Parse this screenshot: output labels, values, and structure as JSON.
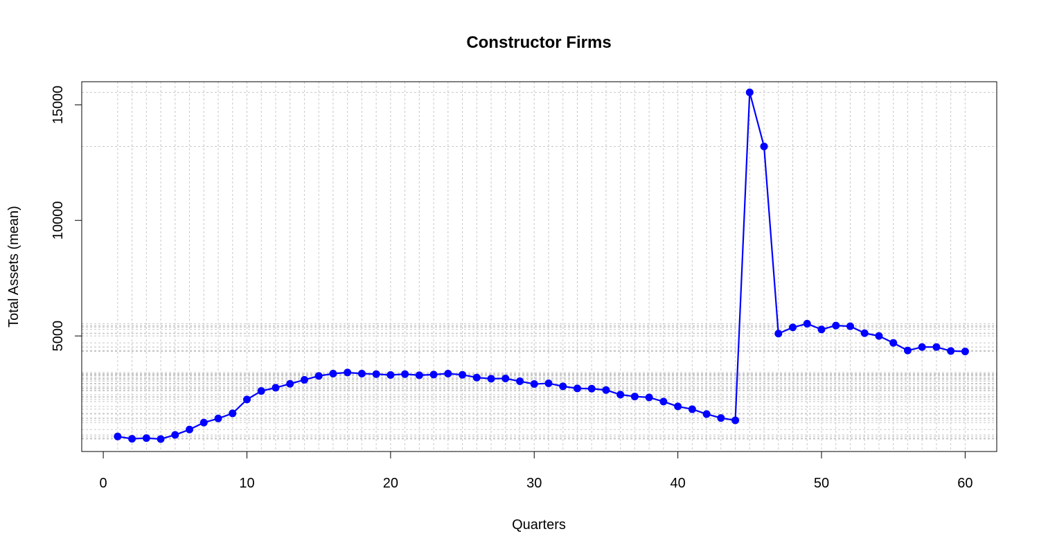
{
  "chart_data": {
    "type": "line",
    "title": "Constructor Firms",
    "xlabel": "Quarters",
    "ylabel": "Total Assets (mean)",
    "xlim": [
      -1.5,
      62.2
    ],
    "ylim": [
      0,
      16000
    ],
    "xticks": [
      0,
      10,
      20,
      30,
      40,
      50,
      60
    ],
    "yticks": [
      5000,
      10000,
      15000
    ],
    "grid": true,
    "color": "#0000ff",
    "series": [
      {
        "x": [
          1,
          2,
          3,
          4,
          5,
          6,
          7,
          8,
          9,
          10,
          11,
          12,
          13,
          14,
          15,
          16,
          17,
          18,
          19,
          20,
          21,
          22,
          23,
          24,
          25,
          26,
          27,
          28,
          29,
          30,
          31,
          32,
          33,
          34,
          35,
          36,
          37,
          38,
          39,
          40,
          41,
          42,
          43,
          44,
          45,
          46,
          47,
          48,
          49,
          50,
          51,
          52,
          53,
          54,
          55,
          56,
          57,
          58,
          59,
          60
        ],
        "y": [
          650,
          550,
          580,
          540,
          720,
          950,
          1250,
          1430,
          1650,
          2250,
          2620,
          2760,
          2930,
          3100,
          3270,
          3370,
          3420,
          3370,
          3350,
          3310,
          3350,
          3300,
          3330,
          3370,
          3320,
          3200,
          3150,
          3160,
          3040,
          2920,
          2950,
          2820,
          2730,
          2720,
          2660,
          2460,
          2380,
          2340,
          2160,
          1950,
          1830,
          1620,
          1450,
          1350,
          15540,
          13200,
          5100,
          5370,
          5530,
          5280,
          5450,
          5420,
          5120,
          5000,
          4700,
          4370,
          4520,
          4520,
          4350,
          4330
        ]
      }
    ]
  }
}
